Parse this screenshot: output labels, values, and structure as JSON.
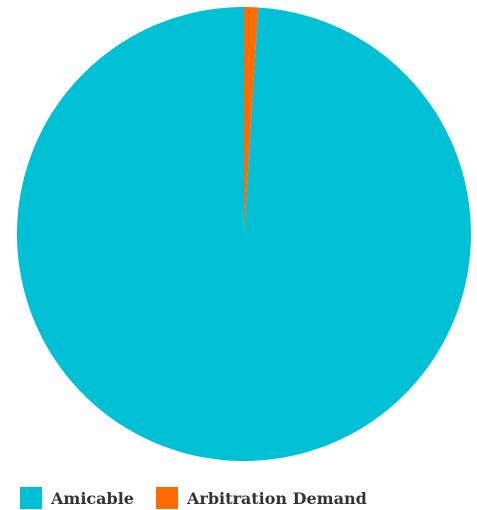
{
  "chart_data": {
    "type": "pie",
    "title": "",
    "slices": [
      {
        "label": "Amicable",
        "value": 99,
        "color": "#00C0D6"
      },
      {
        "label": "Arbitration Demand",
        "value": 1,
        "color": "#FF6B00"
      }
    ],
    "start_angle_deg": 0,
    "direction": "counterclockwise",
    "legend_position": "bottom-left"
  }
}
